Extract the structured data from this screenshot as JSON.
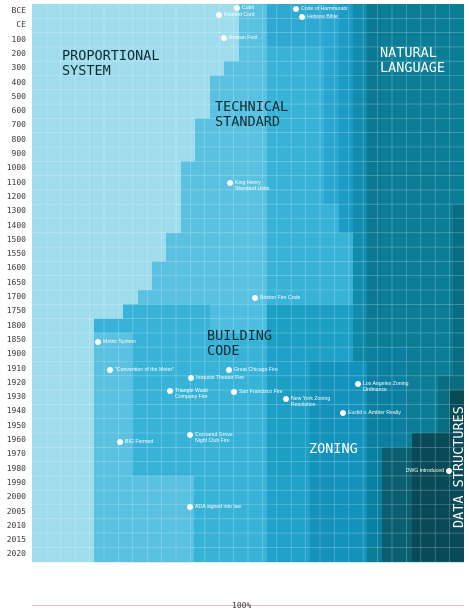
{
  "rows": [
    "BCE",
    "CE",
    "100",
    "200",
    "300",
    "400",
    "500",
    "600",
    "700",
    "800",
    "900",
    "1000",
    "1100",
    "1200",
    "1300",
    "1400",
    "1500",
    "1550",
    "1600",
    "1650",
    "1700",
    "1750",
    "1800",
    "1850",
    "1900",
    "1910",
    "1920",
    "1930",
    "1940",
    "1950",
    "1960",
    "1970",
    "1980",
    "1990",
    "2000",
    "2005",
    "2010",
    "2015",
    "2020"
  ],
  "footer_label": "100%",
  "colors": {
    "proportional": "#9fdcec",
    "technical": "#5ac2e0",
    "building": "#38b3d8",
    "zoning": "#1b9fc4",
    "deep": "#0d88a6",
    "natural": "#0b7d97",
    "dark": "#0c5f70",
    "darkest": "#084a57"
  },
  "chart_data": {
    "type": "area",
    "note": "",
    "categories": [
      "Proportional System",
      "Technical Standard",
      "Building Code",
      "Zoning",
      "Natural Language",
      "Data Structures"
    ]
  },
  "bands": [
    {
      "key": "proportional",
      "label": "PROPORTIONAL\nSYSTEM"
    },
    {
      "key": "technical",
      "label": "TECHNICAL\nSTANDARD"
    },
    {
      "key": "building",
      "label": "BUILDING\nCODE"
    },
    {
      "key": "zoning",
      "label": "ZONING"
    },
    {
      "key": "natural",
      "label": "NATURAL\nLANGUAGE"
    },
    {
      "key": "data",
      "label": "DATA STRUCTURES"
    }
  ],
  "events": [
    {
      "label": "Cubit"
    },
    {
      "label": "Code of Hammurabi"
    },
    {
      "label": "Knotted Cord"
    },
    {
      "label": "Hebrew Bible"
    },
    {
      "label": "Roman Foot"
    },
    {
      "label": "King Henry\nStandard Units"
    },
    {
      "label": "Boston Fire Code"
    },
    {
      "label": "Metric System"
    },
    {
      "label": "Great Chicago Fire"
    },
    {
      "label": "\"Convention of the Meter\""
    },
    {
      "label": "Iroquois Theater Fire"
    },
    {
      "label": "Los Angeles Zoning\nOrdinance"
    },
    {
      "label": "Triangle Waist\nCompany Fire"
    },
    {
      "label": "San Francisco Fire"
    },
    {
      "label": "New York Zoning\nResolution"
    },
    {
      "label": "Euclid v. Ambler Realty"
    },
    {
      "label": "Cocoanut Grove\nNight Club Fire"
    },
    {
      "label": "BIG Formed"
    },
    {
      "label": "DWG introduced"
    },
    {
      "label": "ADA signed into law"
    }
  ]
}
